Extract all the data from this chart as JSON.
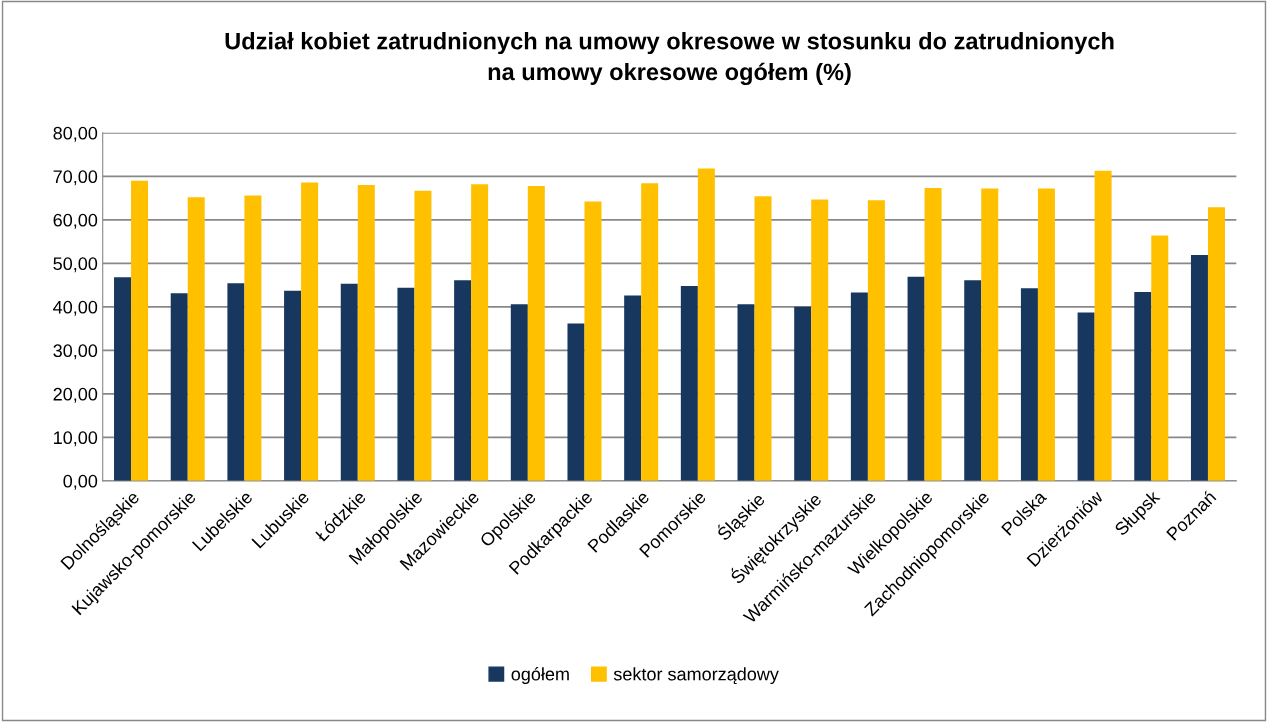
{
  "chart_data": {
    "type": "bar",
    "title": "Udział kobiet zatrudnionych na umowy okresowe w stosunku do zatrudnionych\nna umowy okresowe ogółem (%)",
    "categories": [
      "Dolnośląskie",
      "Kujawsko-pomorskie",
      "Lubelskie",
      "Lubuskie",
      "Łódzkie",
      "Małopolskie",
      "Mazowieckie",
      "Opolskie",
      "Podkarpackie",
      "Podlaskie",
      "Pomorskie",
      "Śląskie",
      "Świętokrzyskie",
      "Warmińsko-mazurskie",
      "Wielkopolskie",
      "Zachodniopomorskie",
      "Polska",
      "Dzierżoniów",
      "Słupsk",
      "Poznań"
    ],
    "series": [
      {
        "name": "ogółem",
        "color": "#17375e",
        "values": [
          46.8,
          43.1,
          45.4,
          43.7,
          45.3,
          44.4,
          46.1,
          40.6,
          36.2,
          42.6,
          44.8,
          40.6,
          40.0,
          43.3,
          46.9,
          46.1,
          44.3,
          38.7,
          43.4,
          51.9
        ]
      },
      {
        "name": "sektor samorządowy",
        "color": "#ffc000",
        "values": [
          69.0,
          65.2,
          65.6,
          68.6,
          68.0,
          66.7,
          68.2,
          67.8,
          64.2,
          68.4,
          71.8,
          65.4,
          64.7,
          64.5,
          67.3,
          67.2,
          67.2,
          71.3,
          56.4,
          62.9
        ]
      }
    ],
    "ylim": [
      0,
      80
    ],
    "yticks": [
      {
        "value": 0,
        "label": "0,00"
      },
      {
        "value": 10,
        "label": "10,00"
      },
      {
        "value": 20,
        "label": "20,00"
      },
      {
        "value": 30,
        "label": "30,00"
      },
      {
        "value": 40,
        "label": "40,00"
      },
      {
        "value": 50,
        "label": "50,00"
      },
      {
        "value": 60,
        "label": "60,00"
      },
      {
        "value": 70,
        "label": "70,00"
      },
      {
        "value": 80,
        "label": "80,00"
      }
    ],
    "grid": "y",
    "legend": "bottom"
  }
}
